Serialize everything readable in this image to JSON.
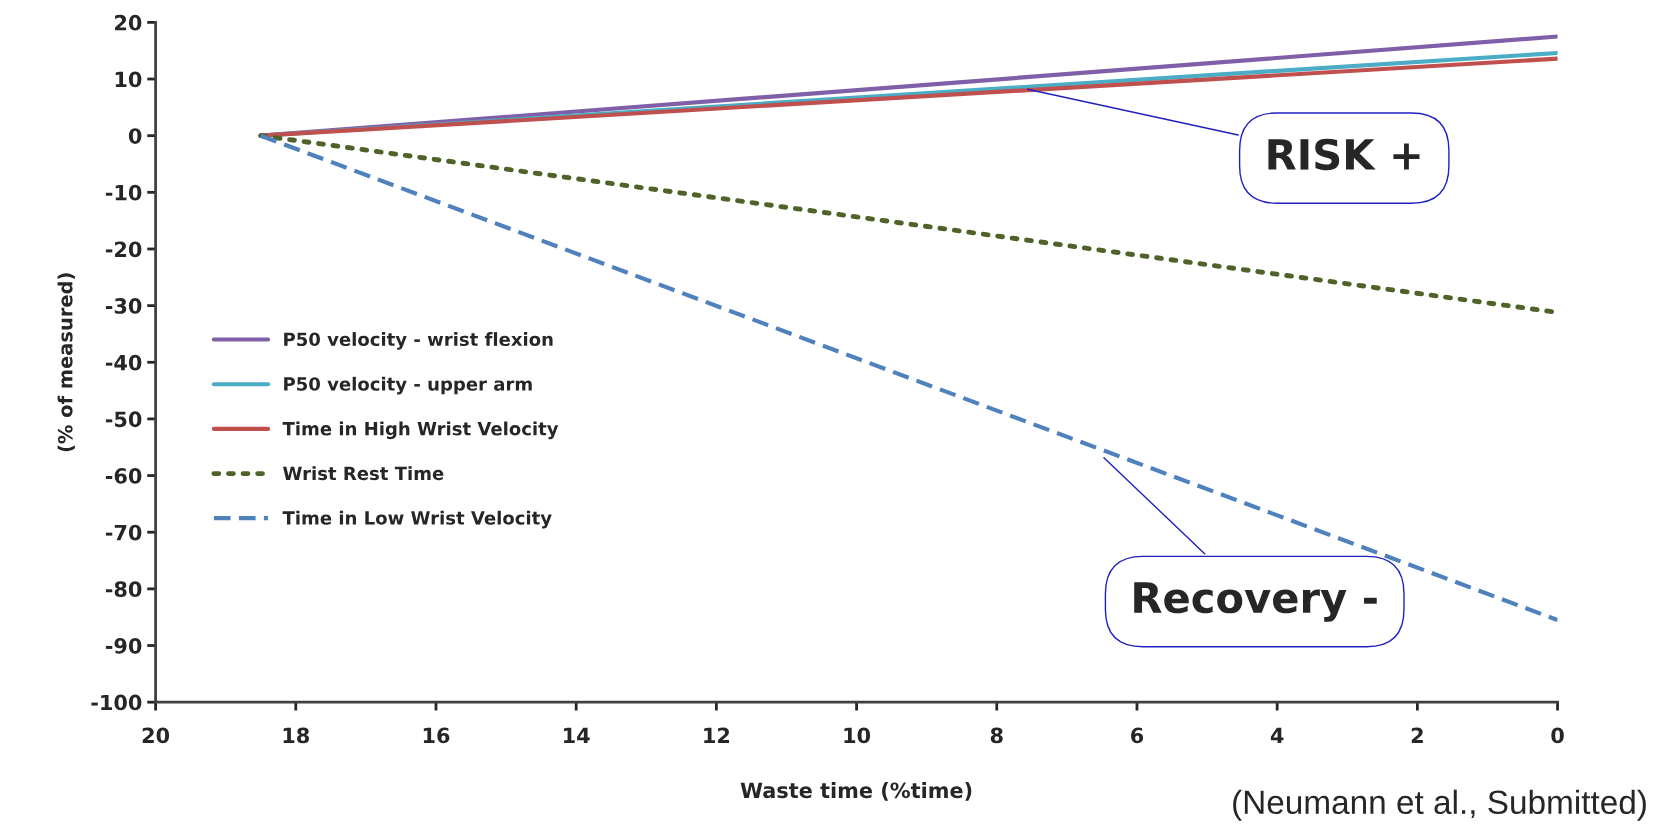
{
  "chart_data": {
    "type": "line",
    "xlabel": "Waste time (%time)",
    "ylabel": "(% of measured)",
    "x": [
      18.5,
      0
    ],
    "series": [
      {
        "name": "P50 velocity - wrist flexion",
        "color": "#7f60a8",
        "values": [
          0,
          17.5
        ],
        "line_style": "solid"
      },
      {
        "name": "P50 velocity - upper arm",
        "color": "#4bacc6",
        "values": [
          0,
          14.6
        ],
        "line_style": "solid"
      },
      {
        "name": "Time in High Wrist Velocity",
        "color": "#c0504d",
        "values": [
          0,
          13.6
        ],
        "line_style": "solid"
      },
      {
        "name": "Wrist Rest Time",
        "color": "#4f6228",
        "values": [
          0,
          -31.2
        ],
        "line_style": "dotted"
      },
      {
        "name": "Time in Low Wrist Velocity",
        "color": "#4f81bd",
        "values": [
          0,
          -85.5
        ],
        "line_style": "dashed"
      }
    ],
    "xlim": [
      20,
      0
    ],
    "xticks": [
      20,
      18,
      16,
      14,
      12,
      10,
      8,
      6,
      4,
      2,
      0
    ],
    "ylim": [
      -100,
      20
    ],
    "yticks": [
      -100,
      -90,
      -80,
      -70,
      -60,
      -50,
      -40,
      -30,
      -20,
      -10,
      0,
      10,
      20
    ],
    "annotations": [
      {
        "text": "RISK +",
        "x": 7.6,
        "y": 8.3
      },
      {
        "text": "Recovery -",
        "x": 6.5,
        "y": -56.5
      },
      "(Neumann et al., Submitted)"
    ],
    "legend": "left",
    "grid": false,
    "marker": "none"
  }
}
